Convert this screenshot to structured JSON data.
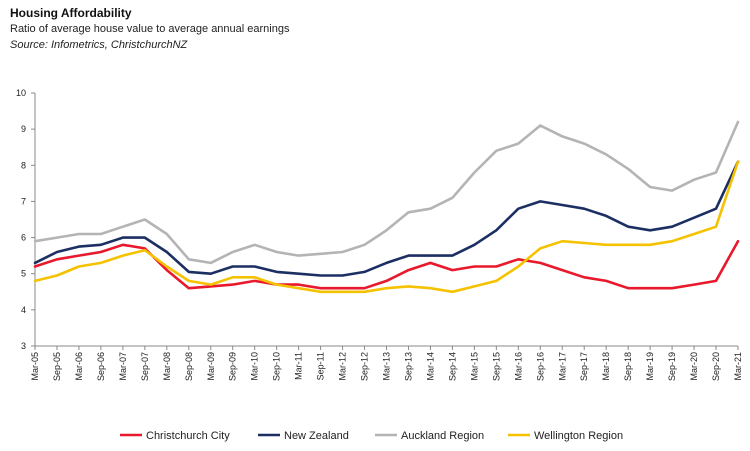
{
  "title": "Housing Affordability",
  "subtitle": "Ratio of average house value to average annual earnings",
  "source": "Source: Infometrics, ChristchurchNZ",
  "chart_data": {
    "type": "line",
    "ylim": [
      3,
      10
    ],
    "yticks": [
      3,
      4,
      5,
      6,
      7,
      8,
      9,
      10
    ],
    "grid": false,
    "legend_position": "bottom",
    "x": [
      "Mar-05",
      "Sep-05",
      "Mar-06",
      "Sep-06",
      "Mar-07",
      "Sep-07",
      "Mar-08",
      "Sep-08",
      "Mar-09",
      "Sep-09",
      "Mar-10",
      "Sep-10",
      "Mar-11",
      "Sep-11",
      "Mar-12",
      "Sep-12",
      "Mar-13",
      "Sep-13",
      "Mar-14",
      "Sep-14",
      "Mar-15",
      "Sep-15",
      "Mar-16",
      "Sep-16",
      "Mar-17",
      "Sep-17",
      "Mar-18",
      "Sep-18",
      "Mar-19",
      "Sep-19",
      "Mar-20",
      "Sep-20",
      "Mar-21"
    ],
    "series": [
      {
        "name": "Christchurch City",
        "color": "#e8192c",
        "values": [
          5.2,
          5.4,
          5.5,
          5.6,
          5.8,
          5.7,
          5.1,
          4.6,
          4.65,
          4.7,
          4.8,
          4.7,
          4.7,
          4.6,
          4.6,
          4.6,
          4.8,
          5.1,
          5.3,
          5.1,
          5.2,
          5.2,
          5.4,
          5.3,
          5.1,
          4.9,
          4.8,
          4.6,
          4.6,
          4.6,
          4.7,
          4.8,
          5.9
        ]
      },
      {
        "name": "New Zealand",
        "color": "#1c2f63",
        "values": [
          5.3,
          5.6,
          5.75,
          5.8,
          6.0,
          6.0,
          5.6,
          5.05,
          5.0,
          5.2,
          5.2,
          5.05,
          5.0,
          4.95,
          4.95,
          5.05,
          5.3,
          5.5,
          5.5,
          5.5,
          5.8,
          6.2,
          6.8,
          7.0,
          6.9,
          6.8,
          6.6,
          6.3,
          6.2,
          6.3,
          6.55,
          6.8,
          8.1
        ]
      },
      {
        "name": "Auckland Region",
        "color": "#b4b4b4",
        "values": [
          5.9,
          6.0,
          6.1,
          6.1,
          6.3,
          6.5,
          6.1,
          5.4,
          5.3,
          5.6,
          5.8,
          5.6,
          5.5,
          5.55,
          5.6,
          5.8,
          6.2,
          6.7,
          6.8,
          7.1,
          7.8,
          8.4,
          8.6,
          9.1,
          8.8,
          8.6,
          8.3,
          7.9,
          7.4,
          7.3,
          7.6,
          7.8,
          9.2
        ]
      },
      {
        "name": "Wellington Region",
        "color": "#f5c200",
        "values": [
          4.8,
          4.95,
          5.2,
          5.3,
          5.5,
          5.65,
          5.2,
          4.8,
          4.7,
          4.9,
          4.9,
          4.7,
          4.6,
          4.5,
          4.5,
          4.5,
          4.6,
          4.65,
          4.6,
          4.5,
          4.65,
          4.8,
          5.2,
          5.7,
          5.9,
          5.85,
          5.8,
          5.8,
          5.8,
          5.9,
          6.1,
          6.3,
          8.1
        ]
      }
    ]
  }
}
